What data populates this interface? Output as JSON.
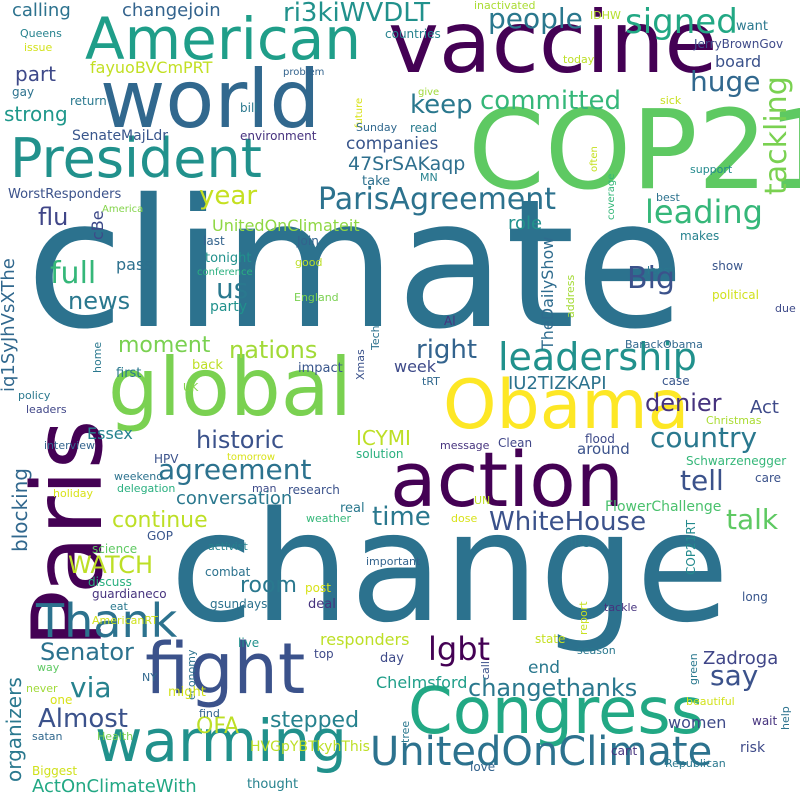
{
  "words": [
    {
      "text": "climate",
      "color": "#2c728e"
    },
    {
      "text": "change",
      "color": "#2c728e"
    },
    {
      "text": "COP21",
      "color": "#5ec962"
    },
    {
      "text": "world",
      "color": "#31688e"
    },
    {
      "text": "vaccine",
      "color": "#440154"
    },
    {
      "text": "American",
      "color": "#1f9e89"
    },
    {
      "text": "President",
      "color": "#21918c"
    },
    {
      "text": "Paris",
      "color": "#440154"
    },
    {
      "text": "global",
      "color": "#7ad151"
    },
    {
      "text": "Obama",
      "color": "#fde725"
    },
    {
      "text": "action",
      "color": "#440154"
    },
    {
      "text": "fight",
      "color": "#3b528b"
    },
    {
      "text": "Congress",
      "color": "#22a884"
    },
    {
      "text": "warming",
      "color": "#21918c"
    },
    {
      "text": "UnitedOnClimate",
      "color": "#2c728e"
    },
    {
      "text": "leadership",
      "color": "#21918c"
    },
    {
      "text": "Thank",
      "color": "#2c728e"
    },
    {
      "text": "signed",
      "color": "#22a884"
    },
    {
      "text": "people",
      "color": "#2a788e"
    },
    {
      "text": "ParisAgreement",
      "color": "#2c728e"
    },
    {
      "text": "leading",
      "color": "#35b779"
    },
    {
      "text": "tackling",
      "color": "#7ad151"
    },
    {
      "text": "huge",
      "color": "#31688e"
    },
    {
      "text": "keep",
      "color": "#2a788e"
    },
    {
      "text": "committed",
      "color": "#35b779"
    },
    {
      "text": "ri3kiWVDLT",
      "color": "#21918c"
    },
    {
      "text": "changejoin",
      "color": "#33638d"
    },
    {
      "text": "calling",
      "color": "#2c728e"
    },
    {
      "text": "inactivated",
      "color": "#aadc32"
    },
    {
      "text": "IDHW",
      "color": "#b5de2b"
    },
    {
      "text": "want",
      "color": "#2a788e"
    },
    {
      "text": "JerryBrownGov",
      "color": "#3e4a89"
    },
    {
      "text": "board",
      "color": "#3b528b"
    },
    {
      "text": "today",
      "color": "#bddf26"
    },
    {
      "text": "countries",
      "color": "#26828e"
    },
    {
      "text": "fayuoBVCmPRT",
      "color": "#c2df23"
    },
    {
      "text": "part",
      "color": "#3e4989"
    },
    {
      "text": "strong",
      "color": "#1f988b"
    },
    {
      "text": "Queens",
      "color": "#26828e"
    },
    {
      "text": "issue",
      "color": "#d2e21b"
    },
    {
      "text": "gay",
      "color": "#2c728e"
    },
    {
      "text": "return",
      "color": "#29788e"
    },
    {
      "text": "problem",
      "color": "#33638d"
    },
    {
      "text": "give",
      "color": "#a0da39"
    },
    {
      "text": "future",
      "color": "#d8e219"
    },
    {
      "text": "bill",
      "color": "#2a788e"
    },
    {
      "text": "Sunday",
      "color": "#31688e"
    },
    {
      "text": "read",
      "color": "#297b8e"
    },
    {
      "text": "sick",
      "color": "#c8e020"
    },
    {
      "text": "SenateMajLdr",
      "color": "#39568c"
    },
    {
      "text": "environment",
      "color": "#46327e"
    },
    {
      "text": "47SrSAKaqp",
      "color": "#2e6f8e"
    },
    {
      "text": "companies",
      "color": "#39568c"
    },
    {
      "text": "MN",
      "color": "#26828e"
    },
    {
      "text": "take",
      "color": "#2d708e"
    },
    {
      "text": "often",
      "color": "#c5e021"
    },
    {
      "text": "coverage",
      "color": "#35b779"
    },
    {
      "text": "support",
      "color": "#238a8d"
    },
    {
      "text": "year",
      "color": "#c5e021"
    },
    {
      "text": "WorstResponders",
      "color": "#3b528b"
    },
    {
      "text": "America",
      "color": "#84d44b"
    },
    {
      "text": "cBe",
      "color": "#3e4a89"
    },
    {
      "text": "UnitedOnClimateit",
      "color": "#8fd744"
    },
    {
      "text": "flu",
      "color": "#404688"
    },
    {
      "text": "role",
      "color": "#21918c"
    },
    {
      "text": "best",
      "color": "#2c728e"
    },
    {
      "text": "Join",
      "color": "#33638d"
    },
    {
      "text": "last",
      "color": "#33638d"
    },
    {
      "text": "makes",
      "color": "#26828e"
    },
    {
      "text": "iq1SyJhVsXThe",
      "color": "#31688e"
    },
    {
      "text": "us",
      "color": "#2a788e"
    },
    {
      "text": "tonight",
      "color": "#21918c"
    },
    {
      "text": "good",
      "color": "#bddf26"
    },
    {
      "text": "TheDailyShow",
      "color": "#2f6c8e"
    },
    {
      "text": "least",
      "color": "#2a788e"
    },
    {
      "text": "show",
      "color": "#39568c"
    },
    {
      "text": "full",
      "color": "#35b779"
    },
    {
      "text": "conference",
      "color": "#2ab07f"
    },
    {
      "text": "Big",
      "color": "#3b528b"
    },
    {
      "text": "pass",
      "color": "#2d708e"
    },
    {
      "text": "England",
      "color": "#7ad151"
    },
    {
      "text": "political",
      "color": "#d0e11c"
    },
    {
      "text": "news",
      "color": "#2a788e"
    },
    {
      "text": "party",
      "color": "#21918c"
    },
    {
      "text": "address",
      "color": "#a5db36"
    },
    {
      "text": "Al",
      "color": "#46337e"
    },
    {
      "text": "due",
      "color": "#3e4a89"
    },
    {
      "text": "moment",
      "color": "#7ad151"
    },
    {
      "text": "nations",
      "color": "#a2da37"
    },
    {
      "text": "home",
      "color": "#2a788e"
    },
    {
      "text": "Tech",
      "color": "#2c728e"
    },
    {
      "text": "BarackObama",
      "color": "#31688e"
    },
    {
      "text": "right",
      "color": "#33638d"
    },
    {
      "text": "back",
      "color": "#bddf26"
    },
    {
      "text": "first",
      "color": "#2a788e"
    },
    {
      "text": "impact",
      "color": "#39568c"
    },
    {
      "text": "Xmas",
      "color": "#3b528b"
    },
    {
      "text": "tRT",
      "color": "#31688e"
    },
    {
      "text": "week",
      "color": "#3e4a89"
    },
    {
      "text": "IU2TIZKAPI",
      "color": "#2c728e"
    },
    {
      "text": "case",
      "color": "#39568c"
    },
    {
      "text": "denier",
      "color": "#46337e"
    },
    {
      "text": "UK",
      "color": "#84d44b"
    },
    {
      "text": "policy",
      "color": "#2a788e"
    },
    {
      "text": "Act",
      "color": "#3e4a89"
    },
    {
      "text": "leaders",
      "color": "#404688"
    },
    {
      "text": "Christmas",
      "color": "#aadc32"
    },
    {
      "text": "historic",
      "color": "#3b528b"
    },
    {
      "text": "ICYMI",
      "color": "#bddf26"
    },
    {
      "text": "country",
      "color": "#2a788e"
    },
    {
      "text": "blocking",
      "color": "#31688e"
    },
    {
      "text": "interview",
      "color": "#33638d"
    },
    {
      "text": "message",
      "color": "#46337e"
    },
    {
      "text": "Clean",
      "color": "#404688"
    },
    {
      "text": "flood",
      "color": "#3e4a89"
    },
    {
      "text": "Essex",
      "color": "#26828e"
    },
    {
      "text": "agreement",
      "color": "#2c728e"
    },
    {
      "text": "around",
      "color": "#3b528b"
    },
    {
      "text": "HPV",
      "color": "#3b528b"
    },
    {
      "text": "tomorrow",
      "color": "#d8e219"
    },
    {
      "text": "solution",
      "color": "#2ab07f"
    },
    {
      "text": "Schwarzenegger",
      "color": "#35b779"
    },
    {
      "text": "weekend",
      "color": "#2c728e"
    },
    {
      "text": "tell",
      "color": "#3b528b"
    },
    {
      "text": "man",
      "color": "#3e4a89"
    },
    {
      "text": "care",
      "color": "#3b528b"
    },
    {
      "text": "holiday",
      "color": "#d8e219"
    },
    {
      "text": "delegation",
      "color": "#29af7f"
    },
    {
      "text": "conversation",
      "color": "#2a788e"
    },
    {
      "text": "research",
      "color": "#3b528b"
    },
    {
      "text": "UN",
      "color": "#bddf26"
    },
    {
      "text": "FlowerChallenge",
      "color": "#4ac16d"
    },
    {
      "text": "continue",
      "color": "#bddf26"
    },
    {
      "text": "time",
      "color": "#2a788e"
    },
    {
      "text": "weather",
      "color": "#35b779"
    },
    {
      "text": "real",
      "color": "#2a788e"
    },
    {
      "text": "dose",
      "color": "#d8e219"
    },
    {
      "text": "WhiteHouse",
      "color": "#3b528b"
    },
    {
      "text": "talk",
      "color": "#5ec962"
    },
    {
      "text": "GOP",
      "color": "#39568c"
    },
    {
      "text": "WATCH",
      "color": "#bddf26"
    },
    {
      "text": "activist",
      "color": "#26828e"
    },
    {
      "text": "science",
      "color": "#5ec962"
    },
    {
      "text": "life",
      "color": "#2a788e"
    },
    {
      "text": "COP21RT",
      "color": "#238a8d"
    },
    {
      "text": "discuss",
      "color": "#29af7f"
    },
    {
      "text": "combat",
      "color": "#2c728e"
    },
    {
      "text": "important",
      "color": "#33638d"
    },
    {
      "text": "room",
      "color": "#2a788e"
    },
    {
      "text": "guardianeco",
      "color": "#46337e"
    },
    {
      "text": "post",
      "color": "#d8e219"
    },
    {
      "text": "gsundays",
      "color": "#2c728e"
    },
    {
      "text": "report",
      "color": "#c8e020"
    },
    {
      "text": "long",
      "color": "#39568c"
    },
    {
      "text": "eat",
      "color": "#2a788e"
    },
    {
      "text": "deal",
      "color": "#46337e"
    },
    {
      "text": "tackle",
      "color": "#46337e"
    },
    {
      "text": "AmericanRT",
      "color": "#d0e11c"
    },
    {
      "text": "live",
      "color": "#21918c"
    },
    {
      "text": "state",
      "color": "#c5e021"
    },
    {
      "text": "responders",
      "color": "#bddf26"
    },
    {
      "text": "Senator",
      "color": "#2c728e"
    },
    {
      "text": "call",
      "color": "#3b528b"
    },
    {
      "text": "season",
      "color": "#2a788e"
    },
    {
      "text": "economy",
      "color": "#2c728e"
    },
    {
      "text": "top",
      "color": "#3e4a89"
    },
    {
      "text": "day",
      "color": "#3e4a89"
    },
    {
      "text": "lgbt",
      "color": "#440154"
    },
    {
      "text": "Zadroga",
      "color": "#404688"
    },
    {
      "text": "green",
      "color": "#2a788e"
    },
    {
      "text": "way",
      "color": "#5ec962"
    },
    {
      "text": "NY",
      "color": "#31688e"
    },
    {
      "text": "might",
      "color": "#d2e21b"
    },
    {
      "text": "Chelmsford",
      "color": "#1f9e89"
    },
    {
      "text": "end",
      "color": "#2a788e"
    },
    {
      "text": "changethanks",
      "color": "#2a788e"
    },
    {
      "text": "say",
      "color": "#3b528b"
    },
    {
      "text": "via",
      "color": "#26828e"
    },
    {
      "text": "never",
      "color": "#a0da39"
    },
    {
      "text": "organizers",
      "color": "#2a788e"
    },
    {
      "text": "one",
      "color": "#d8e219"
    },
    {
      "text": "Almost",
      "color": "#3b528b"
    },
    {
      "text": "OFA",
      "color": "#bddf26"
    },
    {
      "text": "stepped",
      "color": "#26828e"
    },
    {
      "text": "beautiful",
      "color": "#d2e21b"
    },
    {
      "text": "help",
      "color": "#2c728e"
    },
    {
      "text": "find",
      "color": "#33638d"
    },
    {
      "text": "wait",
      "color": "#46337e"
    },
    {
      "text": "satan",
      "color": "#31688e"
    },
    {
      "text": "Health",
      "color": "#7ad151"
    },
    {
      "text": "tree",
      "color": "#2a788e"
    },
    {
      "text": "HVGpYBTkyhThis",
      "color": "#bddf26"
    },
    {
      "text": "women",
      "color": "#3e4a89"
    },
    {
      "text": "cant",
      "color": "#46337e"
    },
    {
      "text": "risk",
      "color": "#3e4a89"
    },
    {
      "text": "Biggest",
      "color": "#d0e11c"
    },
    {
      "text": "love",
      "color": "#33638d"
    },
    {
      "text": "Republican",
      "color": "#2a788e"
    },
    {
      "text": "thought",
      "color": "#26828e"
    },
    {
      "text": "ActOnClimateWith",
      "color": "#22a884"
    }
  ]
}
